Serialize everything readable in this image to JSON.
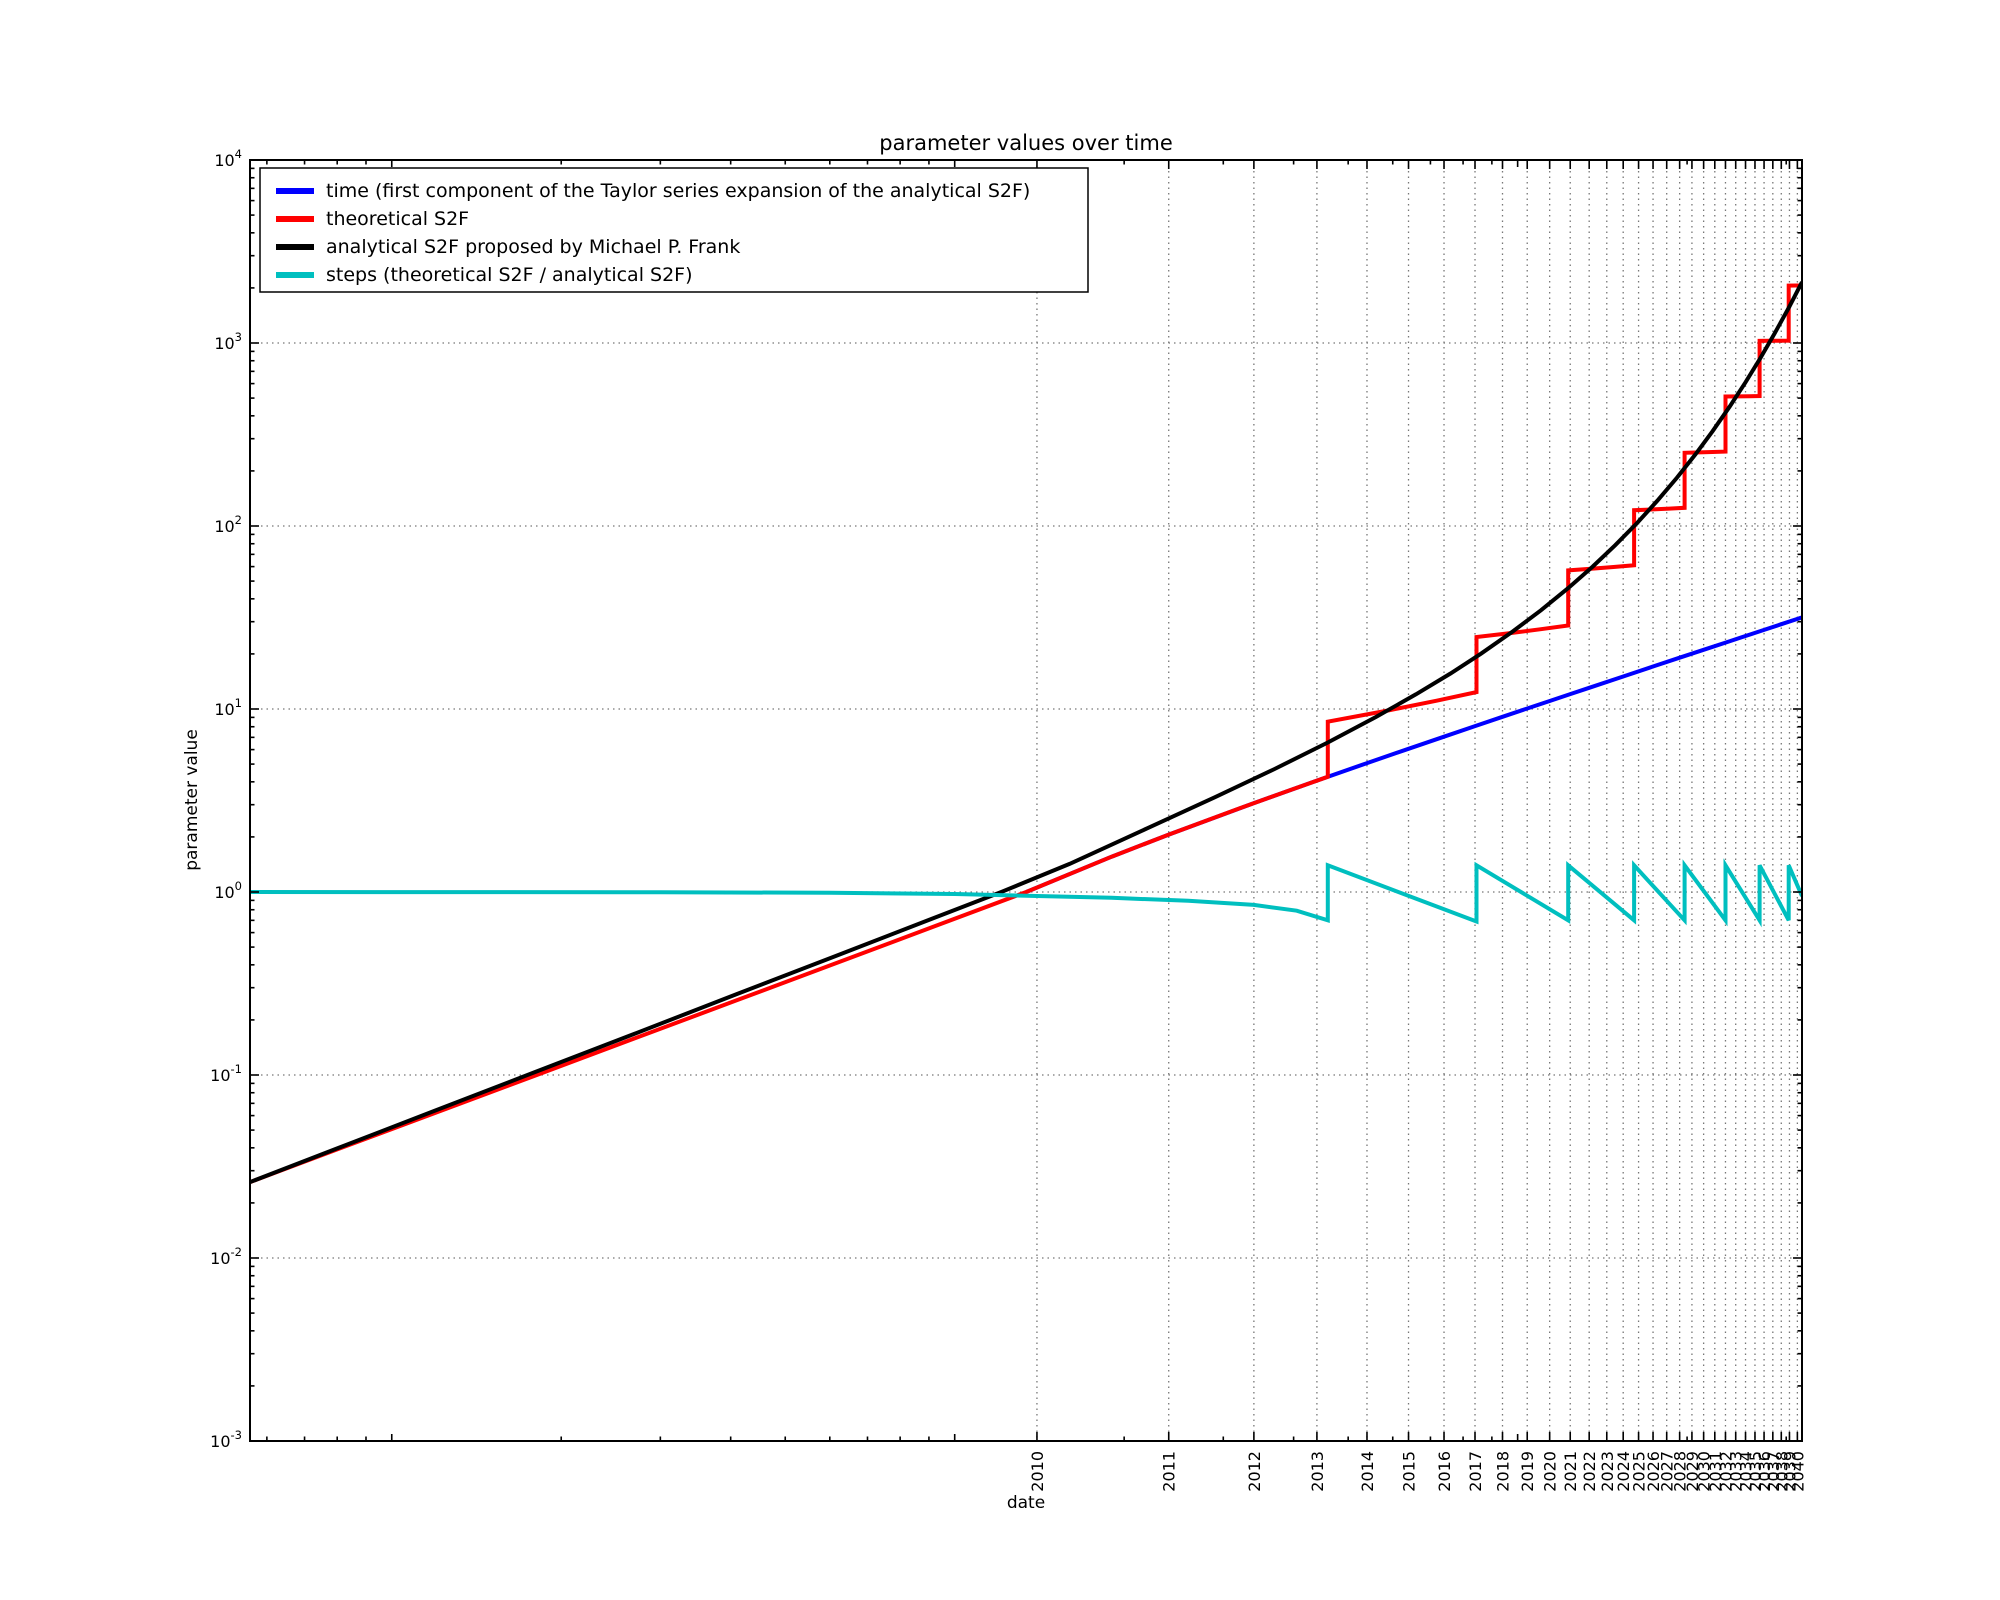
{
  "figure": {
    "title": "parameter values over time",
    "xlabel": "date",
    "ylabel": "parameter value"
  },
  "legend": {
    "items": [
      {
        "label": "time (first component of the Taylor series expansion of the analytical S2F)",
        "color": "#0000ff"
      },
      {
        "label": "theoretical S2F",
        "color": "#ff0000"
      },
      {
        "label": "analytical S2F proposed by Michael P. Frank",
        "color": "#000000"
      },
      {
        "label": "steps (theoretical S2F / analytical S2F)",
        "color": "#00bfbf"
      }
    ]
  },
  "chart_data": {
    "type": "line",
    "title": "parameter values over time",
    "xlabel": "date",
    "ylabel": "parameter value",
    "grid": "dotted",
    "legend_position": "upper left",
    "x_axis": {
      "scale": "log of (year - origin)",
      "origin_year": 2008.6,
      "range_offset": [
        0.056,
        32
      ],
      "tick_years": [
        2010,
        2011,
        2012,
        2013,
        2014,
        2015,
        2016,
        2017,
        2018,
        2019,
        2020,
        2021,
        2022,
        2023,
        2024,
        2025,
        2026,
        2027,
        2028,
        2029,
        2030,
        2031,
        2032,
        2033,
        2034,
        2035,
        2036,
        2037,
        2038,
        2039,
        2040
      ],
      "minor_tick_offsets": [
        0.06,
        0.07,
        0.08,
        0.09,
        0.2,
        0.3,
        0.4,
        0.5,
        0.6,
        0.7,
        0.8,
        0.9,
        2,
        3,
        4,
        5,
        6,
        7,
        8,
        9,
        20,
        30
      ],
      "decade_tick_offsets": [
        0.1,
        1,
        10
      ]
    },
    "y_axis": {
      "scale": "log",
      "range": [
        0.001,
        10000
      ],
      "tick_exponents": [
        4,
        3,
        2,
        1,
        0,
        -1,
        -2,
        -3
      ]
    },
    "halving_years": [
      2013.2,
      2017.05,
      2020.9,
      2024.7,
      2028.4,
      2032.0,
      2035.5,
      2038.9
    ],
    "series": [
      {
        "name": "time",
        "color": "#0000ff",
        "points": [
          [
            2009.94,
            1.0
          ],
          [
            2010.5,
            1.56
          ],
          [
            2011,
            2.06
          ],
          [
            2012,
            3.06
          ],
          [
            2013,
            4.06
          ],
          [
            2014,
            5.06
          ],
          [
            2015,
            6.06
          ],
          [
            2016,
            7.06
          ],
          [
            2017,
            8.06
          ],
          [
            2018,
            9.06
          ],
          [
            2019,
            10.06
          ],
          [
            2020,
            11.06
          ],
          [
            2021,
            12.06
          ],
          [
            2022,
            13.06
          ],
          [
            2024,
            15.06
          ],
          [
            2026,
            17.06
          ],
          [
            2028,
            19.06
          ],
          [
            2030,
            21.06
          ],
          [
            2032,
            23.06
          ],
          [
            2034,
            25.06
          ],
          [
            2036,
            27.06
          ],
          [
            2038,
            29.06
          ],
          [
            2040.6,
            31.66
          ]
        ]
      },
      {
        "name": "theoretical S2F",
        "color": "#ff0000",
        "points": [
          [
            2008.656,
            0.026
          ],
          [
            2008.68,
            0.0392
          ],
          [
            2008.72,
            0.0624
          ],
          [
            2008.78,
            0.0994
          ],
          [
            2008.87,
            0.1585
          ],
          [
            2009.01,
            0.2561
          ],
          [
            2009.21,
            0.4044
          ],
          [
            2009.51,
            0.6407
          ],
          [
            2009.94,
            1.0
          ],
          [
            2010.5,
            1.56
          ],
          [
            2011.0,
            2.06
          ],
          [
            2011.8,
            2.86
          ],
          [
            2012.5,
            3.56
          ],
          [
            2013.2,
            4.26
          ],
          [
            2013.2,
            8.52
          ],
          [
            2014.5,
            9.82
          ],
          [
            2015.8,
            11.12
          ],
          [
            2017.05,
            12.37
          ],
          [
            2017.05,
            24.74
          ],
          [
            2018.3,
            25.99
          ],
          [
            2019.6,
            27.29
          ],
          [
            2020.9,
            28.59
          ],
          [
            2020.9,
            57.18
          ],
          [
            2022.2,
            58.48
          ],
          [
            2023.4,
            59.68
          ],
          [
            2024.7,
            60.98
          ],
          [
            2024.7,
            121.96
          ],
          [
            2026.0,
            123.26
          ],
          [
            2027.2,
            124.46
          ],
          [
            2028.4,
            125.66
          ],
          [
            2028.4,
            251.32
          ],
          [
            2029.6,
            252.52
          ],
          [
            2030.8,
            253.72
          ],
          [
            2032.0,
            254.92
          ],
          [
            2032.0,
            509.84
          ],
          [
            2033.2,
            511.04
          ],
          [
            2034.4,
            512.24
          ],
          [
            2035.5,
            513.34
          ],
          [
            2035.5,
            1026.68
          ],
          [
            2036.6,
            1027.78
          ],
          [
            2037.8,
            1028.98
          ],
          [
            2038.9,
            1030.08
          ],
          [
            2038.9,
            2060.16
          ],
          [
            2039.8,
            2061.06
          ],
          [
            2040.6,
            2061.86
          ]
        ]
      },
      {
        "name": "analytical S2F",
        "color": "#000000",
        "points": [
          [
            2008.656,
            0.026
          ],
          [
            2008.68,
            0.0397
          ],
          [
            2008.72,
            0.0643
          ],
          [
            2008.78,
            0.104
          ],
          [
            2008.87,
            0.168
          ],
          [
            2009.01,
            0.2766
          ],
          [
            2009.21,
            0.4433
          ],
          [
            2009.51,
            0.7129
          ],
          [
            2009.81,
            1.0
          ],
          [
            2010.2,
            1.424
          ],
          [
            2010.8,
            2.231
          ],
          [
            2011.5,
            3.297
          ],
          [
            2012.3,
            4.702
          ],
          [
            2013.2,
            6.56
          ],
          [
            2014.2,
            9.04
          ],
          [
            2015.2,
            12.03
          ],
          [
            2016.2,
            15.64
          ],
          [
            2017.2,
            20.02
          ],
          [
            2018.4,
            26.5
          ],
          [
            2019.6,
            34.6
          ],
          [
            2020.9,
            45.8
          ],
          [
            2022.2,
            60.1
          ],
          [
            2023.5,
            78.4
          ],
          [
            2024.9,
            103.9
          ],
          [
            2026.3,
            137.2
          ],
          [
            2027.8,
            184.2
          ],
          [
            2029.3,
            246.6
          ],
          [
            2030.8,
            329.7
          ],
          [
            2032.4,
            448.8
          ],
          [
            2034.0,
            610
          ],
          [
            2035.6,
            829
          ],
          [
            2037.2,
            1126
          ],
          [
            2038.9,
            1556
          ],
          [
            2040.6,
            2152
          ]
        ]
      },
      {
        "name": "steps",
        "color": "#00bfbf",
        "points": [
          [
            2008.656,
            1.0
          ],
          [
            2008.9,
            0.998
          ],
          [
            2009.2,
            0.99
          ],
          [
            2009.6,
            0.975
          ],
          [
            2009.94,
            0.955
          ],
          [
            2010.5,
            0.93
          ],
          [
            2011.2,
            0.895
          ],
          [
            2012.0,
            0.85
          ],
          [
            2012.65,
            0.79
          ],
          [
            2013.2,
            0.7
          ],
          [
            2013.2,
            1.4
          ],
          [
            2017.05,
            0.69
          ],
          [
            2017.05,
            1.4
          ],
          [
            2020.9,
            0.7
          ],
          [
            2020.9,
            1.4
          ],
          [
            2024.7,
            0.7
          ],
          [
            2024.7,
            1.4
          ],
          [
            2028.4,
            0.7
          ],
          [
            2028.4,
            1.4
          ],
          [
            2032.0,
            0.7
          ],
          [
            2032.0,
            1.4
          ],
          [
            2035.5,
            0.7
          ],
          [
            2035.5,
            1.4
          ],
          [
            2038.9,
            0.7
          ],
          [
            2038.9,
            1.4
          ],
          [
            2040.6,
            0.95
          ]
        ]
      }
    ]
  }
}
